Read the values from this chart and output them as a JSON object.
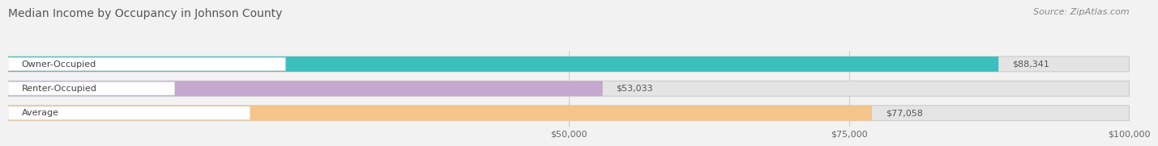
{
  "title": "Median Income by Occupancy in Johnson County",
  "source": "Source: ZipAtlas.com",
  "categories": [
    "Owner-Occupied",
    "Renter-Occupied",
    "Average"
  ],
  "values": [
    88341,
    53033,
    77058
  ],
  "bar_colors": [
    "#3bbfbf",
    "#c4a8d0",
    "#f5c48a"
  ],
  "bar_labels": [
    "$88,341",
    "$53,033",
    "$77,058"
  ],
  "xlim": [
    0,
    100000
  ],
  "xticks": [
    50000,
    75000,
    100000
  ],
  "xticklabels": [
    "$50,000",
    "$75,000",
    "$100,000"
  ],
  "background_color": "#f2f2f2",
  "bar_background_color": "#e4e4e4",
  "label_bg_color": "#ffffff",
  "title_fontsize": 10,
  "source_fontsize": 8,
  "label_fontsize": 8,
  "tick_fontsize": 8
}
